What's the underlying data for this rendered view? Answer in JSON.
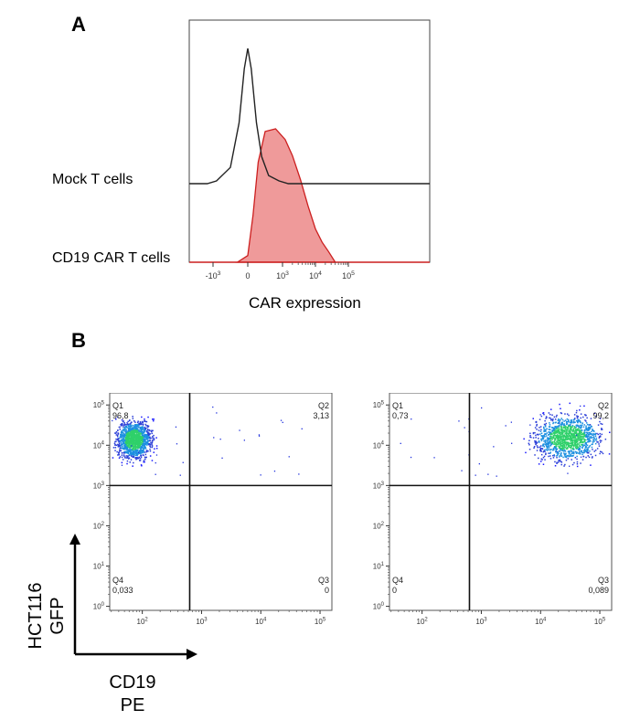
{
  "panel_a": {
    "letter": "A",
    "row_labels": [
      "Mock T cells",
      "CD19 CAR T cells"
    ],
    "xlabel": "CAR expression"
  },
  "panel_b": {
    "letter": "B",
    "axis_y": [
      "HCT116",
      "GFP"
    ],
    "axis_x": [
      "CD19",
      "PE"
    ]
  },
  "colors": {
    "car_fill": "#ef9a9a",
    "car_line": "#cc1f1f",
    "mock_line": "#222222"
  },
  "chart_data": [
    {
      "type": "area",
      "title": "",
      "xlabel": "CAR expression",
      "ylabel": "",
      "x_scale": "biexponential",
      "xticks": [
        "-10³",
        "0",
        "10³",
        "10⁴",
        "10⁵"
      ],
      "series": [
        {
          "name": "Mock T cells",
          "x": [
            -1500,
            -900,
            -500,
            -250,
            -100,
            0,
            100,
            250,
            400,
            600,
            900,
            1500
          ],
          "y": [
            0.0,
            0.02,
            0.12,
            0.45,
            0.85,
            1.0,
            0.85,
            0.45,
            0.2,
            0.06,
            0.02,
            0.0
          ]
        },
        {
          "name": "CD19 CAR T cells",
          "x": [
            -300,
            0,
            150,
            300,
            500,
            800,
            1200,
            2000,
            3500,
            6000,
            10000,
            16000,
            25000,
            40000
          ],
          "y": [
            0.0,
            0.05,
            0.35,
            0.75,
            0.98,
            1.0,
            0.92,
            0.8,
            0.62,
            0.42,
            0.25,
            0.15,
            0.08,
            0.0
          ]
        }
      ]
    },
    {
      "type": "scatter",
      "xlabel": "CD19 PE",
      "ylabel": "HCT116 GFP",
      "x_scale": "log",
      "y_scale": "log",
      "xticks": [
        "10²",
        "10³",
        "10⁴",
        "10⁵"
      ],
      "yticks": [
        "10⁰",
        "10¹",
        "10²",
        "10³",
        "10⁴",
        "10⁵"
      ],
      "quadrants": {
        "Q1": "96,8",
        "Q2": "3,13",
        "Q3": "0",
        "Q4": "0,033"
      }
    },
    {
      "type": "scatter",
      "xlabel": "CD19 PE",
      "ylabel": "HCT116 GFP",
      "x_scale": "log",
      "y_scale": "log",
      "xticks": [
        "10²",
        "10³",
        "10⁴",
        "10⁵"
      ],
      "yticks": [
        "10⁰",
        "10¹",
        "10²",
        "10³",
        "10⁴",
        "10⁵"
      ],
      "quadrants": {
        "Q1": "0,73",
        "Q2": "99,2",
        "Q3": "0,089",
        "Q4": "0"
      }
    }
  ]
}
